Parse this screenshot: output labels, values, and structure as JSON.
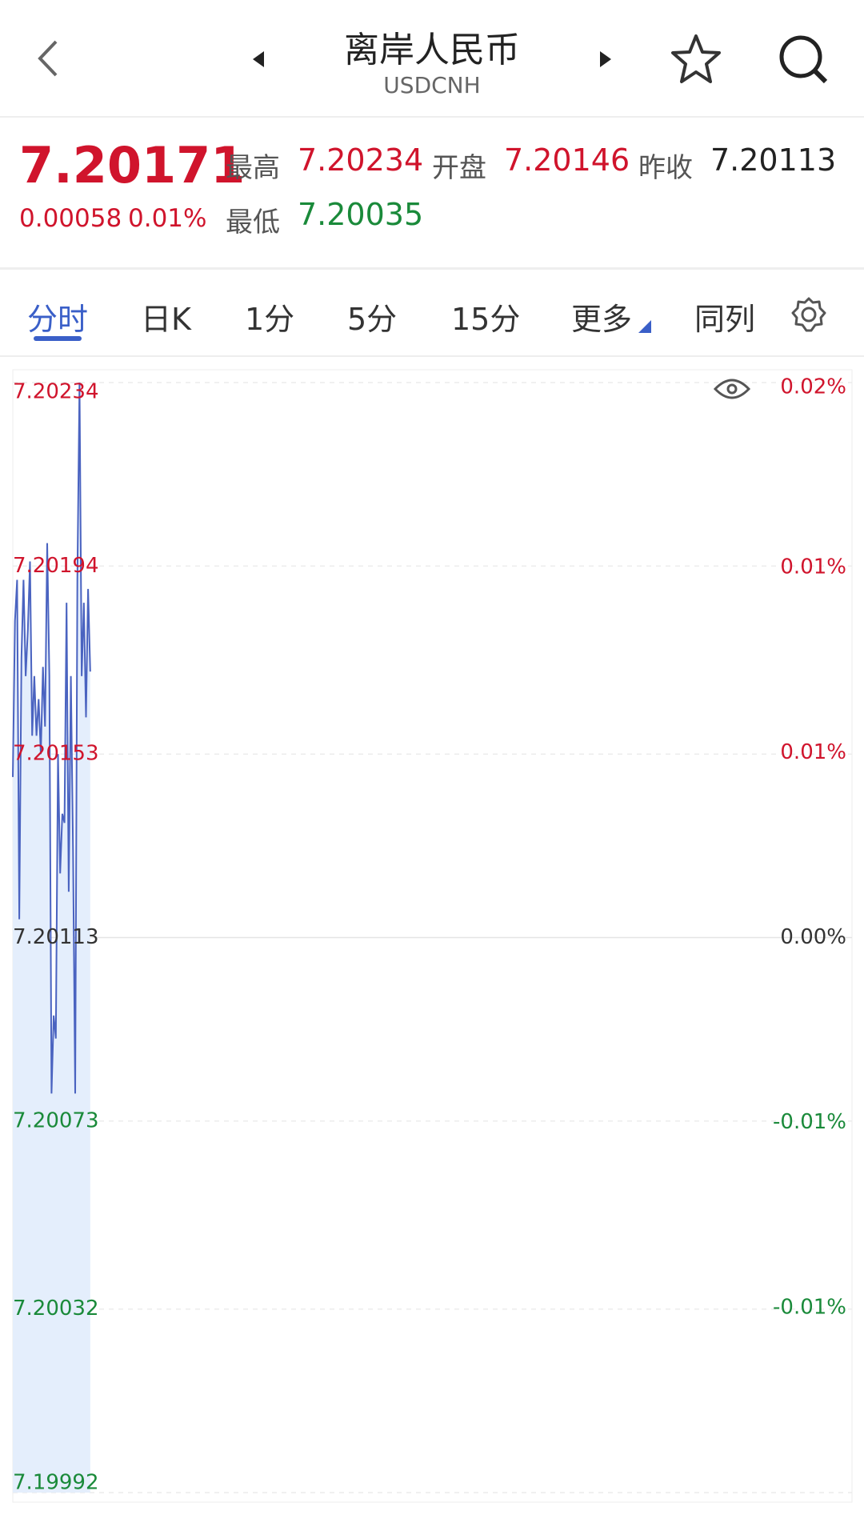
{
  "header": {
    "title": "离岸人民币",
    "subtitle": "USDCNH"
  },
  "quote": {
    "price": "7.20171",
    "change": "0.00058",
    "change_pct": "0.01%",
    "high_label": "最高",
    "high": "7.20234",
    "open_label": "开盘",
    "open": "7.20146",
    "prev_close_label": "昨收",
    "prev_close": "7.20113",
    "low_label": "最低",
    "low": "7.20035"
  },
  "tabs": [
    "分时",
    "日K",
    "1分",
    "5分",
    "15分",
    "更多",
    "同列"
  ],
  "chart_data": {
    "type": "line",
    "color": "#4a63c0",
    "area_fill": "#e4eefc",
    "grid": true,
    "x": [
      0,
      1,
      2,
      3,
      4,
      5,
      6,
      7,
      8,
      9,
      10,
      11,
      12,
      13,
      14,
      15,
      16,
      17,
      18,
      19,
      20,
      21,
      22,
      23,
      24,
      25,
      26,
      27,
      28,
      29,
      30,
      31,
      32,
      33,
      34,
      35,
      36
    ],
    "values": [
      7.20148,
      7.20182,
      7.20191,
      7.20117,
      7.20174,
      7.20191,
      7.2017,
      7.2018,
      7.20195,
      7.20157,
      7.2017,
      7.20157,
      7.20165,
      7.20153,
      7.20172,
      7.20159,
      7.20199,
      7.2017,
      7.20079,
      7.20096,
      7.20091,
      7.20153,
      7.20127,
      7.2014,
      7.20138,
      7.20186,
      7.20123,
      7.2017,
      7.20132,
      7.20079,
      7.20191,
      7.20234,
      7.2017,
      7.20186,
      7.20161,
      7.20189,
      7.20171
    ],
    "xlim": [
      0,
      390
    ],
    "ylim": [
      7.19992,
      7.20234
    ],
    "yticks": [
      7.20234,
      7.20194,
      7.20153,
      7.20113,
      7.20073,
      7.20032,
      7.19992
    ],
    "y2lim": [
      -0.0168,
      0.0168
    ],
    "y2ticks": [
      {
        "value": 0.0168,
        "label": "0.02%"
      },
      {
        "value": 0.0112,
        "label": "0.01%"
      },
      {
        "value": 0.0056,
        "label": "0.01%"
      },
      {
        "value": 0,
        "label": "0.00%"
      },
      {
        "value": -0.0056,
        "label": "-0.01%"
      },
      {
        "value": -0.0112,
        "label": "-0.01%"
      }
    ]
  }
}
